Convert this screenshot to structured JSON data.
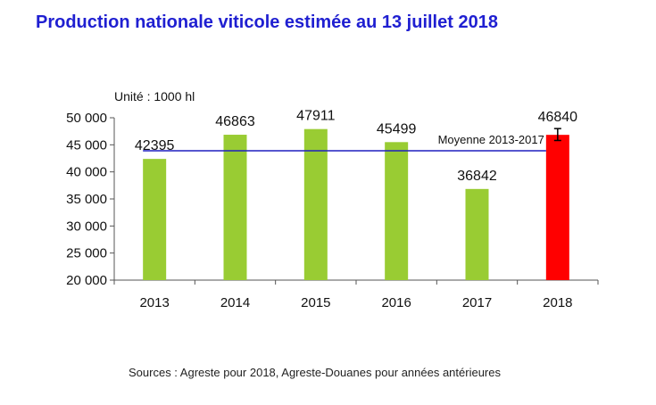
{
  "title": "Production nationale viticole estimée au 13 juillet 2018",
  "source": "Sources : Agreste pour 2018, Agreste-Douanes pour années antérieures",
  "chart_data": {
    "type": "bar",
    "unit_label": "Unité : 1000 hl",
    "categories": [
      "2013",
      "2014",
      "2015",
      "2016",
      "2017",
      "2018"
    ],
    "values": [
      42395,
      46863,
      47911,
      45499,
      36842,
      46840
    ],
    "data_labels": [
      "42395",
      "46863",
      "47911",
      "45499",
      "36842",
      "46840"
    ],
    "colors": [
      "#99cc33",
      "#99cc33",
      "#99cc33",
      "#99cc33",
      "#99cc33",
      "#ff0000"
    ],
    "ylim": [
      20000,
      50000
    ],
    "yticks": [
      20000,
      25000,
      30000,
      35000,
      40000,
      45000,
      50000
    ],
    "ytick_labels": [
      "20 000",
      "25 000",
      "30 000",
      "35 000",
      "40 000",
      "45 000",
      "50 000"
    ],
    "average": {
      "label": "Moyenne 2013-2017",
      "value": 43902,
      "color": "#1f1fbf"
    },
    "error_bar": {
      "category": "2018",
      "low": 45800,
      "high": 48000
    }
  }
}
